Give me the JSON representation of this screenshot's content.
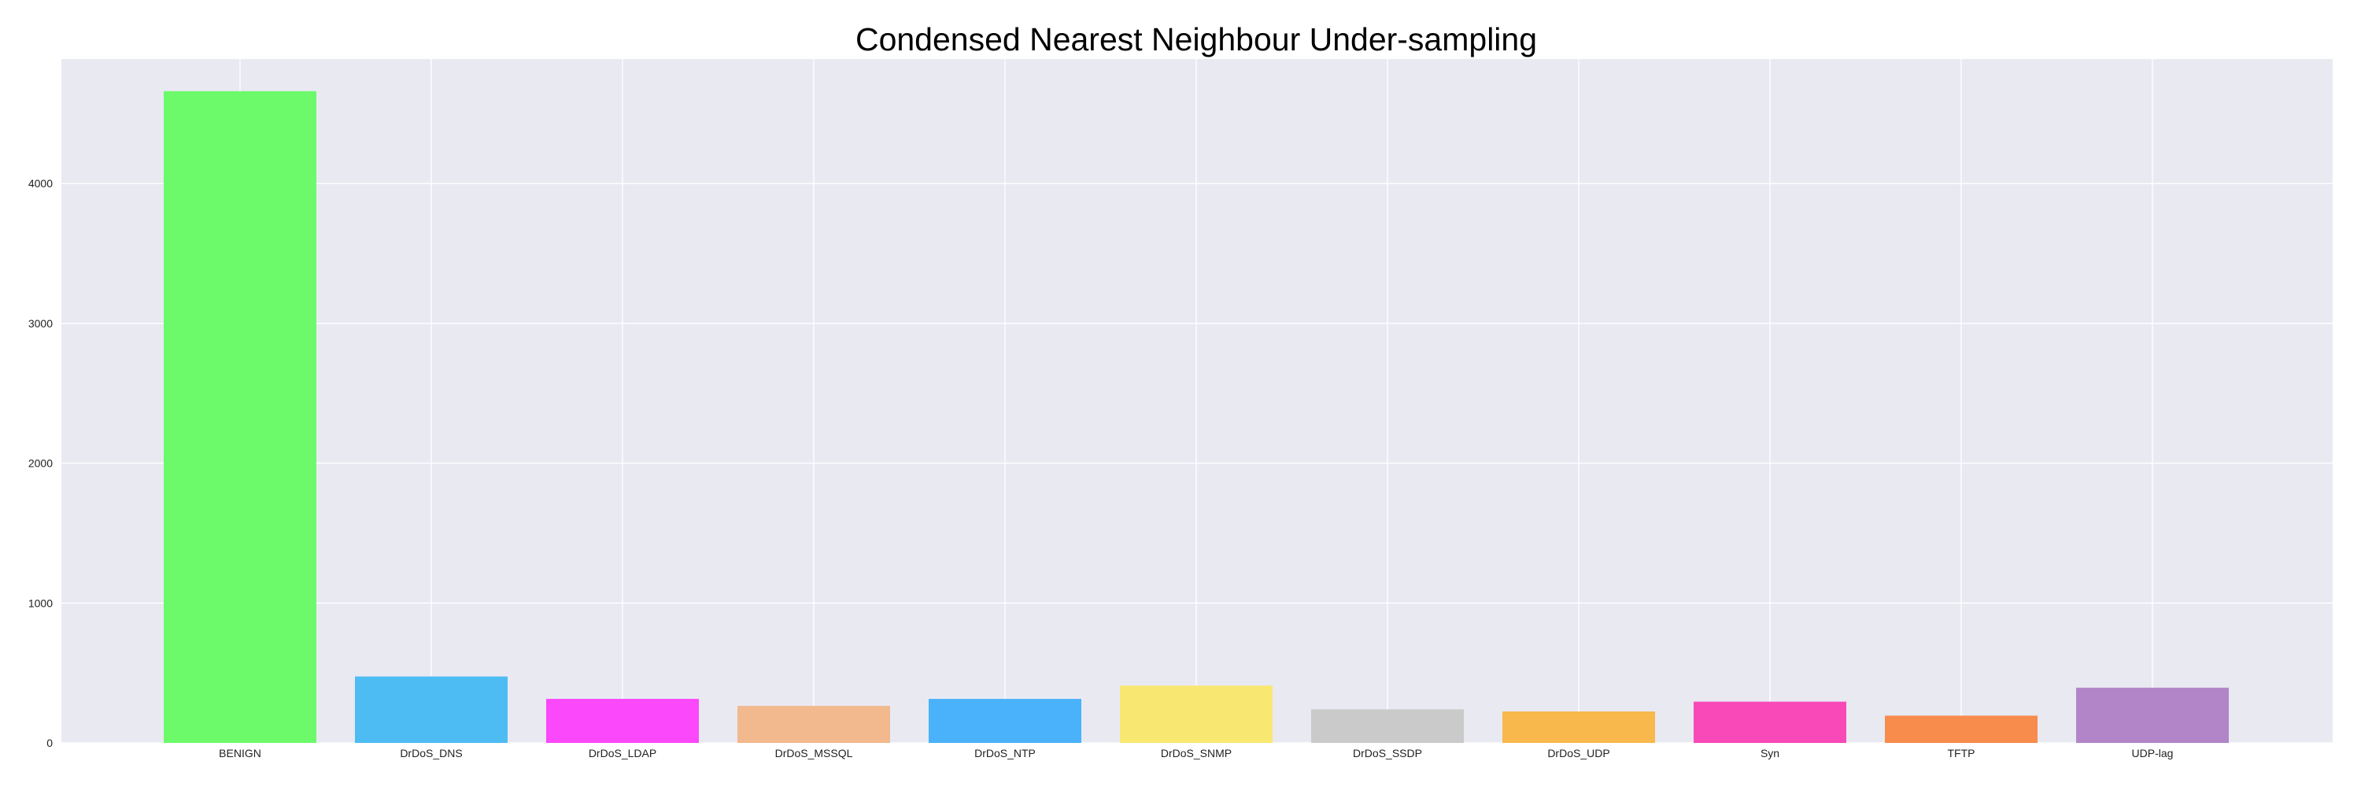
{
  "chart_data": {
    "type": "bar",
    "title": "Condensed Nearest Neighbour Under-sampling",
    "xlabel": "",
    "ylabel": "",
    "categories": [
      "BENIGN",
      "DrDoS_DNS",
      "DrDoS_LDAP",
      "DrDoS_MSSQL",
      "DrDoS_NTP",
      "DrDoS_SNMP",
      "DrDoS_SSDP",
      "DrDoS_UDP",
      "Syn",
      "TFTP",
      "UDP-lag"
    ],
    "values": [
      4660,
      475,
      315,
      265,
      315,
      410,
      240,
      225,
      295,
      195,
      395
    ],
    "colors": [
      "#6dfa6a",
      "#4dbcf3",
      "#fa48fa",
      "#f1b98d",
      "#4ab2fa",
      "#f8e871",
      "#cacaca",
      "#f8b84b",
      "#f949b8",
      "#f88c4c",
      "#b185c8"
    ],
    "yticks": [
      0,
      1000,
      2000,
      3000,
      4000
    ],
    "ylim": [
      0,
      4890
    ],
    "grid": true,
    "background": "#e9e9f2",
    "gridColor": "#ffffff"
  }
}
